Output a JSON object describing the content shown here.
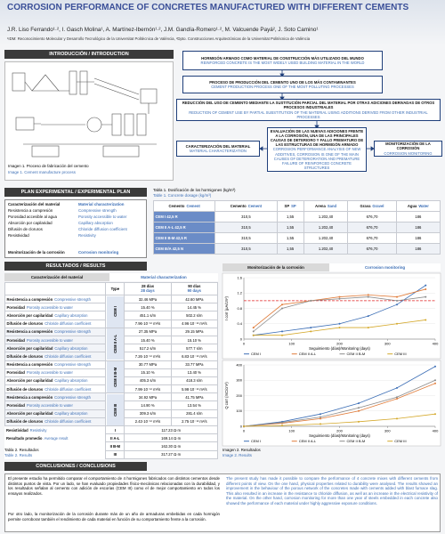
{
  "header": {
    "title": "CORROSION PERFORMANCE OF CONCRETES MANUFACTURED WITH DIFFERENT CEMENTS",
    "authors": "J.R. Liso Ferrando¹·², I. Gasch Molina¹, A. Martínez-Ibernón¹·², J.M. Gandía-Romero¹·², M. Valcuende Payá², J. Soto Camino¹",
    "affiliations": "¹IDM: Reconocimiento Molecular y Desarrollo Tecnológico de la Universitat Politècnica de València, ²Dpto. Construcciones Arquitectónicas de la Universitat Politècnica de València"
  },
  "introduction": {
    "heading": "INTRODUCCIÓN / INTRODUCTION",
    "image_caption_es": "Imagen 1. Proceso de fabricación del cemento",
    "image_caption_en": "Image 1. Cement manufacture process",
    "flow": [
      {
        "es": "HORMIGÓN ARMADO COMO MATERIAL DE CONSTRUCCIÓN MÁS UTILIZADO DEL MUNDO",
        "en": "REINFORCED CONCRETE IS THE MOST WIDELY USED BUILDING MATERIAL IN THE WORLD"
      },
      {
        "es": "PROCESO DE PRODUCCIÓN DEL CEMENTO UNO DE LOS MÁS CONTAMINANTES",
        "en": "CEMENT PRODUCTION PROCESS ONE OF THE MOST POLLUTING PROCESSES"
      },
      {
        "es": "REDUCCIÓN DEL USO DE CEMENTO MEDIANTE LA SUSTITUCIÓN PARCIAL DEL MATERIAL POR OTRAS ADICIONES DERIVADAS DE OTROS PROCESOS INDUSTRIALES",
        "en": "REDUCTION OF CEMENT USE BY PARTIAL SUBSTITUTION OF THE MATERIAL USING ADDITIONS DERIVED FROM OTHER INDUSTRIAL PROCESSES"
      },
      {
        "es": "EVALUACIÓN DE LAS NUEVAS ADICIONES FRENTE A LA CORROSIÓN, UNA DE LAS PRINCIPALES CAUSAS DE DETERIORO Y FALLO PREMATURO DE LAS ESTRUCTURAS DE HORMIGÓN ARMADO",
        "en": "CORROSION PERFORMANCE ANALYSIS OF NEW ADDITIVES, CORROSION IS ONE OF THE MAIN CAUSES OF DETERIORATION AND PREMATURE FAILURE OF REINFORCED CONCRETE STRUCTURES"
      },
      {
        "es": "CARACTERIZACIÓN DEL MATERIAL",
        "en": "MATERIAL CHARACTERIZATION"
      },
      {
        "es": "MONITORIZACIÓN DE LA CORROSIÓN",
        "en": "CORROSION MONITORING"
      }
    ]
  },
  "plan": {
    "heading": "PLAN EXPERIMENTAL / EXPERIMENTAL PLAN",
    "characterization_es": "Caracterización del material",
    "characterization_en": "Material characterization",
    "items_es": [
      "Resistencia a compresión",
      "Porosidad accesible al agua",
      "Absorción por capilaridad",
      "Difusión de cloruros",
      "Resistividad"
    ],
    "items_en": [
      "Compressive strength",
      "Porosity accessible to water",
      "Capillary absorption",
      "Chloride diffusion coefficient",
      "Resistivity"
    ],
    "monitoring_es": "Monitorización de la corrosión",
    "monitoring_en": "Corrosion monitoring",
    "table_caption_es": "Tabla 1. Dosificación de los hormigones (kg/m³)",
    "table_caption_en": "Table 1. Concrete dosage (kg/m³)",
    "table_header": [
      {
        "es": "Cemento",
        "en": "Cement"
      },
      {
        "es": "Cemento",
        "en": "Cement"
      },
      {
        "es": "SP",
        "en": "SP"
      },
      {
        "es": "Arena",
        "en": "Sand"
      },
      {
        "es": "Grava",
        "en": "Gravel"
      },
      {
        "es": "Agua",
        "en": "Water"
      }
    ],
    "table_rows": [
      [
        "CEM I 42,5 R",
        "310,5",
        "1,55",
        "1.202,40",
        "676,70",
        "186"
      ],
      [
        "CEM II A-L 42,5 R",
        "310,5",
        "1,55",
        "1.202,40",
        "676,70",
        "186"
      ],
      [
        "CEM II B-M 42,5 R",
        "310,5",
        "1,55",
        "1.202,40",
        "676,70",
        "186"
      ],
      [
        "CEM III/A 42,5 N",
        "310,5",
        "1,55",
        "1.202,40",
        "676,70",
        "186"
      ]
    ]
  },
  "results": {
    "heading": "RESULTADOS / RESULTS",
    "characterization_es": "Caracterización del material",
    "characterization_en": "Material characterization",
    "monitoring_es": "Monitorización de la corrosión",
    "monitoring_en": "Corrosion monitoring",
    "type_header": "Type",
    "age_headers": [
      {
        "es": "28 días",
        "en": "28 days"
      },
      {
        "es": "90 días",
        "en": "90 days"
      }
    ],
    "properties": [
      {
        "es": "Resistencia a compresión",
        "en": "Compressive strength"
      },
      {
        "es": "Porosidad",
        "en": "Porosity accessible to water"
      },
      {
        "es": "Absorción por capilaridad",
        "en": "Capillary absorption"
      },
      {
        "es": "Difusión de cloruros",
        "en": "Chloride diffusion coefficient"
      }
    ],
    "cements": [
      {
        "type": "CEM I",
        "values": [
          [
            "32.46 MPa",
            "42.60 MPa"
          ],
          [
            "15.40 %",
            "14.45 %"
          ],
          [
            "451.1 s/m",
            "502.2 s/m"
          ],
          [
            "7.96·10⁻¹² m²/s",
            "4.96·10⁻¹² m²/s"
          ]
        ]
      },
      {
        "type": "CEM II A-L",
        "values": [
          [
            "27.35 MPa",
            "29.15 MPa"
          ],
          [
            "15.40 %",
            "15.10 %"
          ],
          [
            "517.2 s/m",
            "577.7 s/m"
          ],
          [
            "7.26·10⁻¹² m²/s",
            "6.83·10⁻¹² m²/s"
          ]
        ]
      },
      {
        "type": "CEM II B-M",
        "values": [
          [
            "30.77 MPa",
            "33.77 MPa"
          ],
          [
            "15.10 %",
            "13.40 %"
          ],
          [
            "405.3 s/m",
            "418.3 s/m"
          ],
          [
            "7.99·10⁻¹² m²/s",
            "5.98·10⁻¹² m²/s"
          ]
        ]
      },
      {
        "type": "CEM III",
        "values": [
          [
            "34.92 MPa",
            "41.75 MPa"
          ],
          [
            "14.90 %",
            "13.54 %"
          ],
          [
            "309.3 s/m",
            "281.4 s/m"
          ],
          [
            "2.43·10⁻¹² m²/s",
            "2.75·10⁻¹² m²/s"
          ]
        ]
      }
    ],
    "resistivity_es": "Resistividad",
    "resistivity_en": "Resistivity",
    "average_es": "Resultado promedio",
    "average_en": "Average result",
    "resistivity_rows": [
      [
        "I",
        "117.23 Ω·m"
      ],
      [
        "II A-L",
        "169.14 Ω·m"
      ],
      [
        "II B-M",
        "162.30 Ω·m"
      ],
      [
        "III",
        "317.27 Ω·m"
      ]
    ],
    "table_caption_es": "Tabla 2. Resultados",
    "table_caption_en": "Table 2. Results",
    "image_caption_es": "Imagen 2. Resultados",
    "image_caption_en": "Image 2. Results",
    "charts": [
      {
        "type": "line",
        "y_label": "I corr (µA/cm²)",
        "x_label": "Seguimiento (días)/Monitoring (days)",
        "xlim": [
          0,
          400
        ],
        "xticks": [
          0,
          100,
          200,
          300,
          400
        ],
        "ylim": [
          0,
          1.6
        ],
        "yticks": [
          0,
          0.4,
          0.8,
          1.2,
          1.6
        ],
        "grid": true,
        "legend": "bottom",
        "hline": 1,
        "hline_color": "#e02020",
        "x": [
          20,
          80,
          140,
          200,
          260,
          320,
          380
        ],
        "series": [
          {
            "name": "CEM I",
            "color": "#3d6fb6",
            "values": [
              0.1,
              0.2,
              0.3,
              0.4,
              0.6,
              0.9,
              1.4
            ]
          },
          {
            "name": "CEM II A-L",
            "color": "#e07b39",
            "values": [
              0.3,
              0.9,
              1.0,
              1.1,
              1.15,
              1.1,
              1.3
            ]
          },
          {
            "name": "CEM II B-M",
            "color": "#8a8a8a",
            "values": [
              0.2,
              0.8,
              1.0,
              1.05,
              1.1,
              1.0,
              1.1
            ]
          },
          {
            "name": "CEM III",
            "color": "#d4a82a",
            "values": [
              0.1,
              0.1,
              0.2,
              0.3,
              0.3,
              0.4,
              0.5
            ]
          }
        ]
      },
      {
        "type": "line",
        "y_label": "Q corr (mC/cm²)",
        "x_label": "Seguimiento (días)/Monitoring (days)",
        "xlim": [
          0,
          400
        ],
        "xticks": [
          0,
          100,
          200,
          300,
          400
        ],
        "ylim": [
          0,
          400
        ],
        "yticks": [
          0,
          100,
          200,
          300,
          400
        ],
        "grid": true,
        "legend": "bottom",
        "x": [
          0,
          80,
          160,
          240,
          320,
          400
        ],
        "series": [
          {
            "name": "CEM I",
            "color": "#3d6fb6",
            "values": [
              0,
              30,
              80,
              150,
              250,
              390
            ]
          },
          {
            "name": "CEM II A-L",
            "color": "#e07b39",
            "values": [
              0,
              20,
              50,
              100,
              180,
              280
            ]
          },
          {
            "name": "CEM II B-M",
            "color": "#8a8a8a",
            "values": [
              0,
              25,
              60,
              120,
              190,
              300
            ]
          },
          {
            "name": "CEM III",
            "color": "#d4a82a",
            "values": [
              0,
              5,
              15,
              30,
              50,
              80
            ]
          }
        ]
      }
    ]
  },
  "conclusions": {
    "heading": "CONCLUSIONES / CONCLUSIONS",
    "es": [
      "El presente estudio ha permitido comparar el comportamiento de 4 hormigones fabricados con distintos cementos desde distintos puntos de vista. Por un lado, se han evaluado propiedades físico-mecánicas relacionadas con la durabilidad, y los resultados señalan al cemento con adición de escorias (CEM III) como el de mejor comportamiento en todos los ensayos realizados.",
      "Por otro lado, la monitorización de la corrosión durante más de un año de armaduras embebidas en cada hormigón permite corroborar también el rendimiento de cada material en función de su comportamiento frente a la corrosión."
    ],
    "en": "The present study has made it possible to compare the performance of 4 concrete mixes with different cements from different points of view. On the one hand, physical properties related to durability were analysed. The results showed an improvement in the behaviour of the porous network of the concretes made with cements added with blast furnace slag. This also resulted in an increase in the resistance to chloride diffusion, as well as an increase in the electrical resistivity of the material. On the other hand, corrosion monitoring for more than one year of steels embedded in each concrete also showed the performance of each material under highly aggressive exposure conditions."
  }
}
